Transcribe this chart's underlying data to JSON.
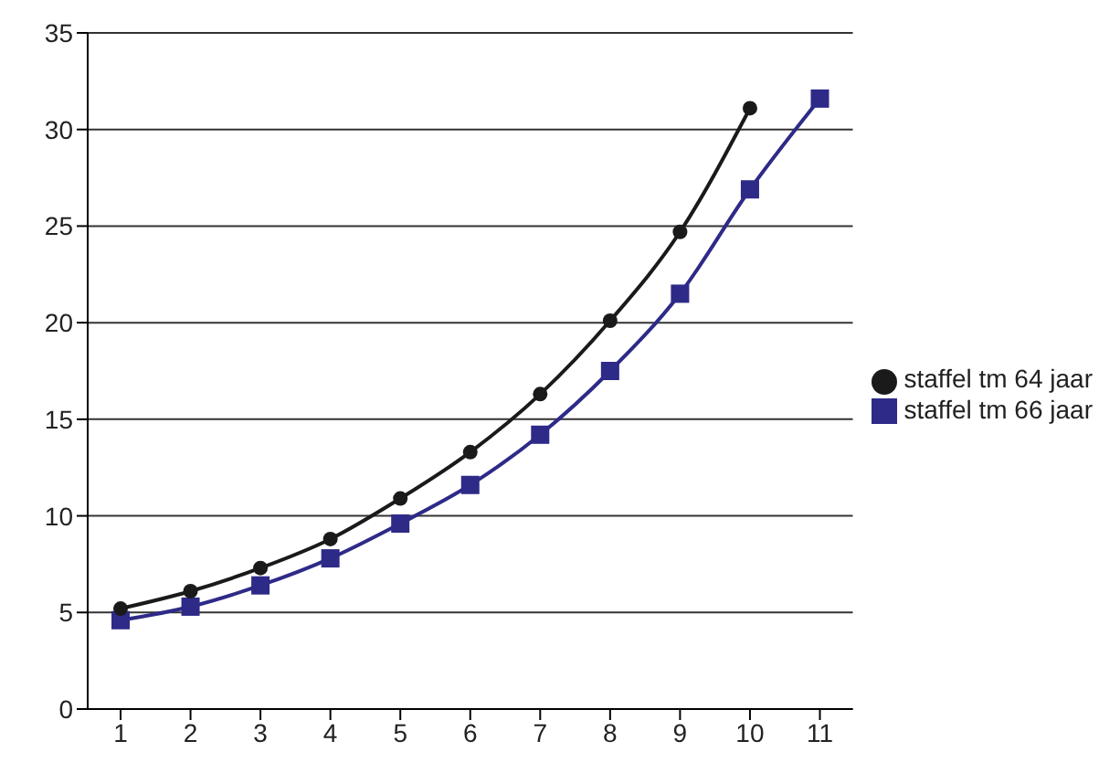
{
  "chart_data": {
    "type": "line",
    "categories": [
      "1",
      "2",
      "3",
      "4",
      "5",
      "6",
      "7",
      "8",
      "9",
      "10",
      "11"
    ],
    "series": [
      {
        "name": "staffel tm 66 jaar",
        "color": "#2e2a88",
        "marker": "square",
        "values": [
          4.6,
          5.3,
          6.4,
          7.8,
          9.6,
          11.6,
          14.2,
          17.5,
          21.5,
          26.9,
          31.6
        ]
      },
      {
        "name": "staffel tm 64 jaar",
        "color": "#1a1a1a",
        "marker": "circle",
        "values": [
          5.2,
          6.1,
          7.3,
          8.8,
          10.9,
          13.3,
          16.3,
          20.1,
          24.7,
          31.1,
          null
        ]
      }
    ],
    "ylim": [
      0,
      35
    ],
    "yticks": [
      0,
      5,
      10,
      15,
      20,
      25,
      30,
      35
    ],
    "grid": "y",
    "legend": "right"
  }
}
